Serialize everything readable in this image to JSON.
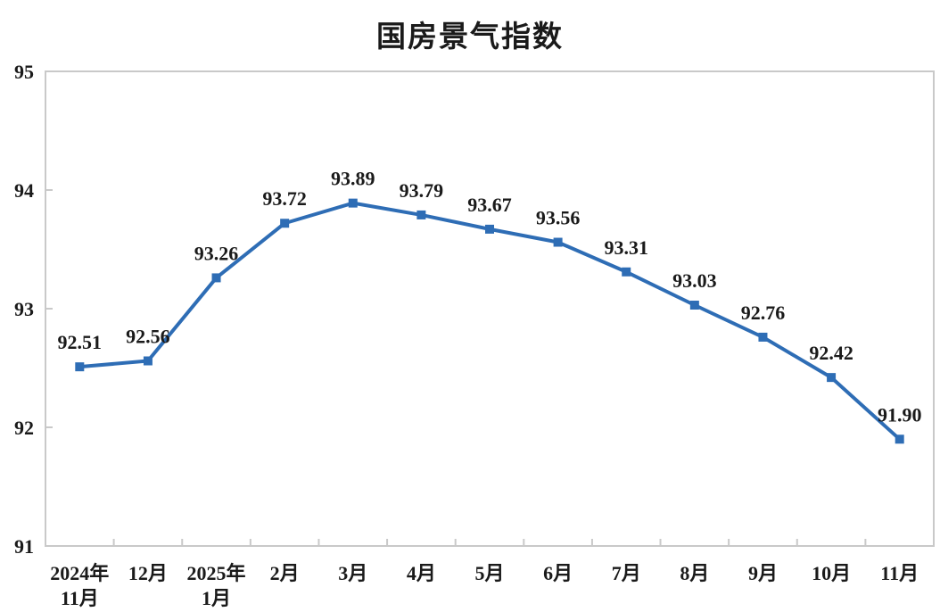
{
  "chart_data": {
    "type": "line",
    "title": "国房景气指数",
    "categories": [
      [
        "2024年",
        "11月"
      ],
      [
        "12月"
      ],
      [
        "2025年",
        "1月"
      ],
      [
        "2月"
      ],
      [
        "3月"
      ],
      [
        "4月"
      ],
      [
        "5月"
      ],
      [
        "6月"
      ],
      [
        "7月"
      ],
      [
        "8月"
      ],
      [
        "9月"
      ],
      [
        "10月"
      ],
      [
        "11月"
      ]
    ],
    "values": [
      92.51,
      92.56,
      93.26,
      93.72,
      93.89,
      93.79,
      93.67,
      93.56,
      93.31,
      93.03,
      92.76,
      92.42,
      91.9
    ],
    "value_labels": [
      "92.51",
      "92.56",
      "93.26",
      "93.72",
      "93.89",
      "93.79",
      "93.67",
      "93.56",
      "93.31",
      "93.03",
      "92.76",
      "92.42",
      "91.90"
    ],
    "xlabel": "",
    "ylabel": "",
    "ylim": [
      91,
      95
    ],
    "yticks": [
      91,
      92,
      93,
      94,
      95
    ],
    "grid": false,
    "legend_position": "none",
    "marker": "square",
    "colors": {
      "series": "#2E6DB5",
      "axis": "#C9C9C9",
      "label": "#1A1A1A",
      "background": "#FFFFFF"
    }
  }
}
